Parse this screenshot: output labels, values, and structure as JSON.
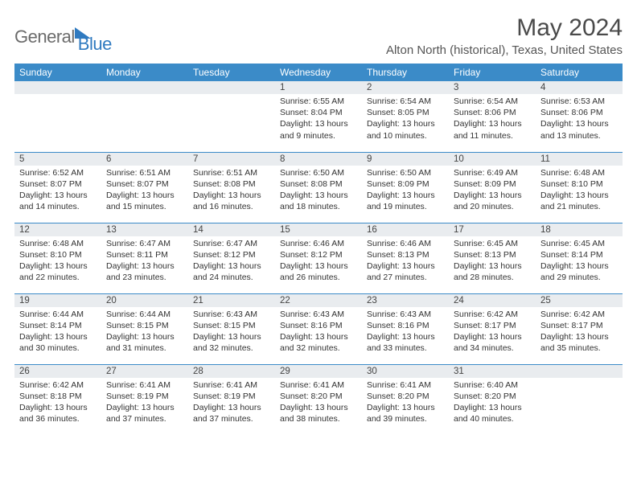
{
  "logo": {
    "general": "General",
    "blue": "Blue"
  },
  "title": "May 2024",
  "location": "Alton North (historical), Texas, United States",
  "colors": {
    "header_bg": "#3b8bc8",
    "header_text": "#ffffff",
    "daynum_bg": "#e9ecef",
    "rule": "#3b8bc8",
    "logo_gray": "#6b6b6b",
    "logo_blue": "#2f7ac0"
  },
  "weekdays": [
    "Sunday",
    "Monday",
    "Tuesday",
    "Wednesday",
    "Thursday",
    "Friday",
    "Saturday"
  ],
  "weeks": [
    [
      {
        "n": "",
        "sr": "",
        "ss": "",
        "dl": ""
      },
      {
        "n": "",
        "sr": "",
        "ss": "",
        "dl": ""
      },
      {
        "n": "",
        "sr": "",
        "ss": "",
        "dl": ""
      },
      {
        "n": "1",
        "sr": "6:55 AM",
        "ss": "8:04 PM",
        "dl": "13 hours and 9 minutes."
      },
      {
        "n": "2",
        "sr": "6:54 AM",
        "ss": "8:05 PM",
        "dl": "13 hours and 10 minutes."
      },
      {
        "n": "3",
        "sr": "6:54 AM",
        "ss": "8:06 PM",
        "dl": "13 hours and 11 minutes."
      },
      {
        "n": "4",
        "sr": "6:53 AM",
        "ss": "8:06 PM",
        "dl": "13 hours and 13 minutes."
      }
    ],
    [
      {
        "n": "5",
        "sr": "6:52 AM",
        "ss": "8:07 PM",
        "dl": "13 hours and 14 minutes."
      },
      {
        "n": "6",
        "sr": "6:51 AM",
        "ss": "8:07 PM",
        "dl": "13 hours and 15 minutes."
      },
      {
        "n": "7",
        "sr": "6:51 AM",
        "ss": "8:08 PM",
        "dl": "13 hours and 16 minutes."
      },
      {
        "n": "8",
        "sr": "6:50 AM",
        "ss": "8:08 PM",
        "dl": "13 hours and 18 minutes."
      },
      {
        "n": "9",
        "sr": "6:50 AM",
        "ss": "8:09 PM",
        "dl": "13 hours and 19 minutes."
      },
      {
        "n": "10",
        "sr": "6:49 AM",
        "ss": "8:09 PM",
        "dl": "13 hours and 20 minutes."
      },
      {
        "n": "11",
        "sr": "6:48 AM",
        "ss": "8:10 PM",
        "dl": "13 hours and 21 minutes."
      }
    ],
    [
      {
        "n": "12",
        "sr": "6:48 AM",
        "ss": "8:10 PM",
        "dl": "13 hours and 22 minutes."
      },
      {
        "n": "13",
        "sr": "6:47 AM",
        "ss": "8:11 PM",
        "dl": "13 hours and 23 minutes."
      },
      {
        "n": "14",
        "sr": "6:47 AM",
        "ss": "8:12 PM",
        "dl": "13 hours and 24 minutes."
      },
      {
        "n": "15",
        "sr": "6:46 AM",
        "ss": "8:12 PM",
        "dl": "13 hours and 26 minutes."
      },
      {
        "n": "16",
        "sr": "6:46 AM",
        "ss": "8:13 PM",
        "dl": "13 hours and 27 minutes."
      },
      {
        "n": "17",
        "sr": "6:45 AM",
        "ss": "8:13 PM",
        "dl": "13 hours and 28 minutes."
      },
      {
        "n": "18",
        "sr": "6:45 AM",
        "ss": "8:14 PM",
        "dl": "13 hours and 29 minutes."
      }
    ],
    [
      {
        "n": "19",
        "sr": "6:44 AM",
        "ss": "8:14 PM",
        "dl": "13 hours and 30 minutes."
      },
      {
        "n": "20",
        "sr": "6:44 AM",
        "ss": "8:15 PM",
        "dl": "13 hours and 31 minutes."
      },
      {
        "n": "21",
        "sr": "6:43 AM",
        "ss": "8:15 PM",
        "dl": "13 hours and 32 minutes."
      },
      {
        "n": "22",
        "sr": "6:43 AM",
        "ss": "8:16 PM",
        "dl": "13 hours and 32 minutes."
      },
      {
        "n": "23",
        "sr": "6:43 AM",
        "ss": "8:16 PM",
        "dl": "13 hours and 33 minutes."
      },
      {
        "n": "24",
        "sr": "6:42 AM",
        "ss": "8:17 PM",
        "dl": "13 hours and 34 minutes."
      },
      {
        "n": "25",
        "sr": "6:42 AM",
        "ss": "8:17 PM",
        "dl": "13 hours and 35 minutes."
      }
    ],
    [
      {
        "n": "26",
        "sr": "6:42 AM",
        "ss": "8:18 PM",
        "dl": "13 hours and 36 minutes."
      },
      {
        "n": "27",
        "sr": "6:41 AM",
        "ss": "8:19 PM",
        "dl": "13 hours and 37 minutes."
      },
      {
        "n": "28",
        "sr": "6:41 AM",
        "ss": "8:19 PM",
        "dl": "13 hours and 37 minutes."
      },
      {
        "n": "29",
        "sr": "6:41 AM",
        "ss": "8:20 PM",
        "dl": "13 hours and 38 minutes."
      },
      {
        "n": "30",
        "sr": "6:41 AM",
        "ss": "8:20 PM",
        "dl": "13 hours and 39 minutes."
      },
      {
        "n": "31",
        "sr": "6:40 AM",
        "ss": "8:20 PM",
        "dl": "13 hours and 40 minutes."
      },
      {
        "n": "",
        "sr": "",
        "ss": "",
        "dl": ""
      }
    ]
  ],
  "labels": {
    "sunrise": "Sunrise:",
    "sunset": "Sunset:",
    "daylight": "Daylight:"
  }
}
